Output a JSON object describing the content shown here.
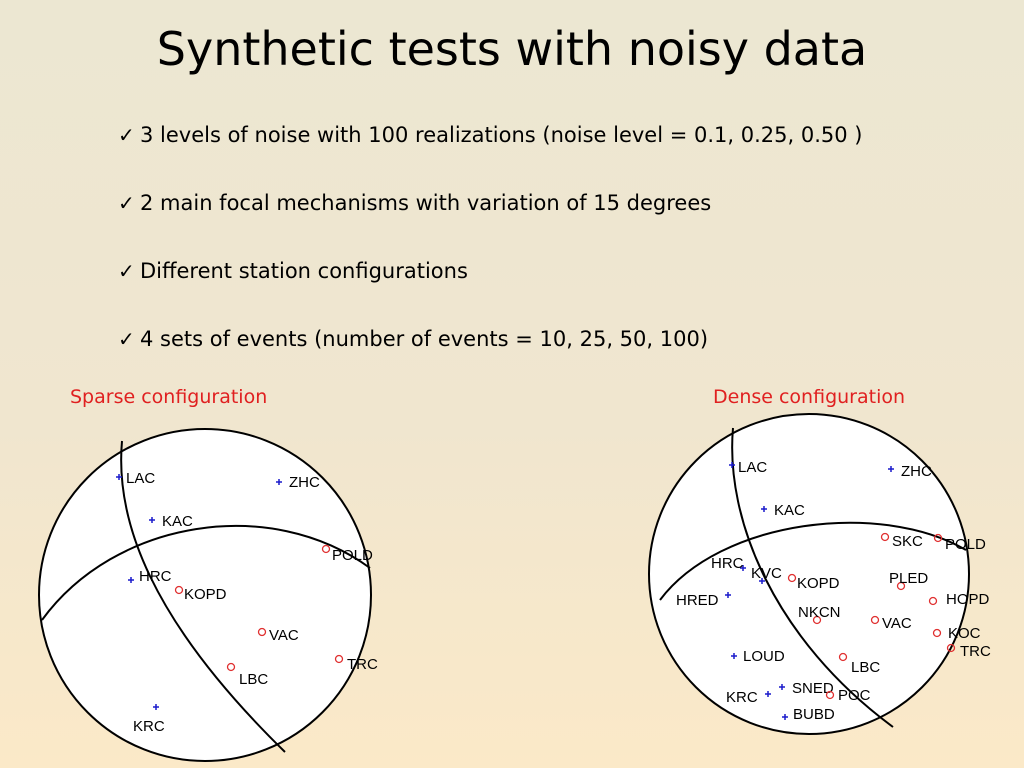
{
  "slide": {
    "title": "Synthetic tests with noisy data",
    "bullets": [
      "3 levels of noise with 100 realizations (noise level = 0.1,  0.25, 0.50 )",
      "2 main focal mechanisms with variation of 15 degrees",
      "Different station configurations",
      "4 sets of events (number of events = 10, 25, 50, 100)"
    ]
  },
  "sparse": {
    "label": "Sparse configuration",
    "stations": [
      {
        "name": "LAC",
        "marker": "+"
      },
      {
        "name": "ZHC",
        "marker": "+"
      },
      {
        "name": "KAC",
        "marker": "+"
      },
      {
        "name": "POLD",
        "marker": "o"
      },
      {
        "name": "HRC",
        "marker": "+"
      },
      {
        "name": "KOPD",
        "marker": "o"
      },
      {
        "name": "VAC",
        "marker": "o"
      },
      {
        "name": "TRC",
        "marker": "o"
      },
      {
        "name": "LBC",
        "marker": "o"
      },
      {
        "name": "KRC",
        "marker": "+"
      }
    ]
  },
  "dense": {
    "label": "Dense configuration",
    "stations": [
      {
        "name": "LAC",
        "marker": "+"
      },
      {
        "name": "ZHC",
        "marker": "+"
      },
      {
        "name": "KAC",
        "marker": "+"
      },
      {
        "name": "SKC",
        "marker": "o"
      },
      {
        "name": "POLD",
        "marker": "o"
      },
      {
        "name": "HRC",
        "marker": "+"
      },
      {
        "name": "KVC",
        "marker": "+"
      },
      {
        "name": "KOPD",
        "marker": "o"
      },
      {
        "name": "PLED",
        "marker": "o"
      },
      {
        "name": "HRED",
        "marker": "+"
      },
      {
        "name": "HOPD",
        "marker": "o"
      },
      {
        "name": "NKCN",
        "marker": "o"
      },
      {
        "name": "VAC",
        "marker": "o"
      },
      {
        "name": "KOC",
        "marker": "o"
      },
      {
        "name": "TRC",
        "marker": "o"
      },
      {
        "name": "LOUD",
        "marker": "+"
      },
      {
        "name": "LBC",
        "marker": "o"
      },
      {
        "name": "SNED",
        "marker": "+"
      },
      {
        "name": "POC",
        "marker": "o"
      },
      {
        "name": "KRC",
        "marker": "+"
      },
      {
        "name": "BUBD",
        "marker": "+"
      }
    ]
  },
  "colors": {
    "plus_marker": "#1a1acc",
    "circle_marker": "#e03030",
    "config_label": "#e02020"
  },
  "icons": {
    "bullet": "checkmark-icon"
  }
}
